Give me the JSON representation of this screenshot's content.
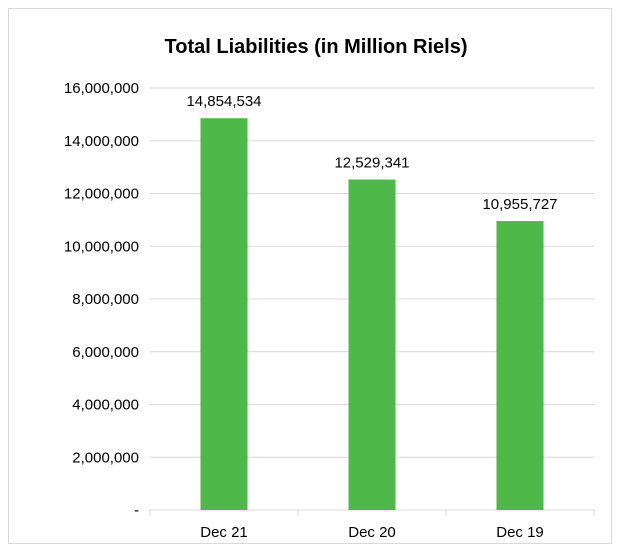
{
  "chart_data": {
    "type": "bar",
    "title": "Total Liabilities (in Million Riels)",
    "categories": [
      "Dec 21",
      "Dec 20",
      "Dec 19"
    ],
    "values": [
      14854534,
      12529341,
      10955727
    ],
    "data_labels": [
      "14,854,534",
      "12,529,341",
      "10,955,727"
    ],
    "ylim": [
      0,
      16000000
    ],
    "yticks": [
      0,
      2000000,
      4000000,
      6000000,
      8000000,
      10000000,
      12000000,
      14000000,
      16000000
    ],
    "ytick_labels": [
      "-",
      "2,000,000",
      "4,000,000",
      "6,000,000",
      "8,000,000",
      "10,000,000",
      "12,000,000",
      "14,000,000",
      "16,000,000"
    ],
    "grid": true,
    "legend": "none",
    "bar_color": "#4eb848",
    "grid_color": "#d9d9d9"
  }
}
